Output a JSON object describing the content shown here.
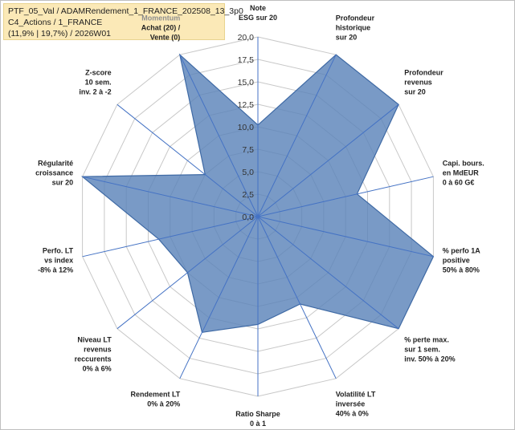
{
  "info": {
    "line1": "PTF_05_Val / ADAMRendement_1_FRANCE_202508_13_3p0",
    "line2": "C4_Actions / 1_FRANCE",
    "line3": "(11,9% | 19,7%) / 2026W01"
  },
  "chart_data": {
    "type": "radar",
    "title": "",
    "rmin": 0,
    "rmax": 20,
    "tick_step": 2.5,
    "tick_labels": [
      "0,0",
      "2,5",
      "5,0",
      "7,5",
      "10,0",
      "12,5",
      "15,0",
      "17,5",
      "20,0"
    ],
    "grid": true,
    "series": [
      {
        "name": "PTF_05_Val",
        "color": "#5b84b9",
        "fill_opacity": 0.82
      }
    ],
    "axes": [
      {
        "lines": [
          "Note",
          "ESG sur 20"
        ],
        "value": 10.2
      },
      {
        "lines": [
          "Profondeur",
          "historique",
          "sur 20"
        ],
        "value": 20
      },
      {
        "lines": [
          "Profondeur",
          "revenus",
          "sur 20"
        ],
        "value": 20
      },
      {
        "lines": [
          "Capi. bours.",
          "en MdEUR",
          "0 à 60 G€"
        ],
        "value": 11.3
      },
      {
        "lines": [
          "% perfo 1A",
          "positive",
          "50% à 80%"
        ],
        "value": 20
      },
      {
        "lines": [
          "% perte max.",
          "sur 1 sem.",
          "inv. 50% à 20%"
        ],
        "value": 20
      },
      {
        "lines": [
          "Volatilité LT",
          "inversée",
          "40% à 0%"
        ],
        "value": 10.8
      },
      {
        "lines": [
          "Ratio Sharpe",
          "0 à 1"
        ],
        "value": 12.0
      },
      {
        "lines": [
          "Rendement LT",
          "0% à 20%"
        ],
        "value": 14.3
      },
      {
        "lines": [
          "Niveau LT",
          "revenus",
          "reccurents",
          "0% à 6%"
        ],
        "value": 10.0
      },
      {
        "lines": [
          "Perfo. LT",
          "vs index",
          "-8% à 12%"
        ],
        "value": 11.3
      },
      {
        "lines": [
          "Régularité",
          "croissance",
          "sur 20"
        ],
        "value": 20
      },
      {
        "lines": [
          "Z-score",
          "10 sem.",
          "inv. 2 à -2"
        ],
        "value": 7.5
      },
      {
        "lines": [
          "Momentum",
          "Achat (20) /",
          "Vente (0)"
        ],
        "value": 20,
        "first_line_grey": true
      }
    ]
  }
}
